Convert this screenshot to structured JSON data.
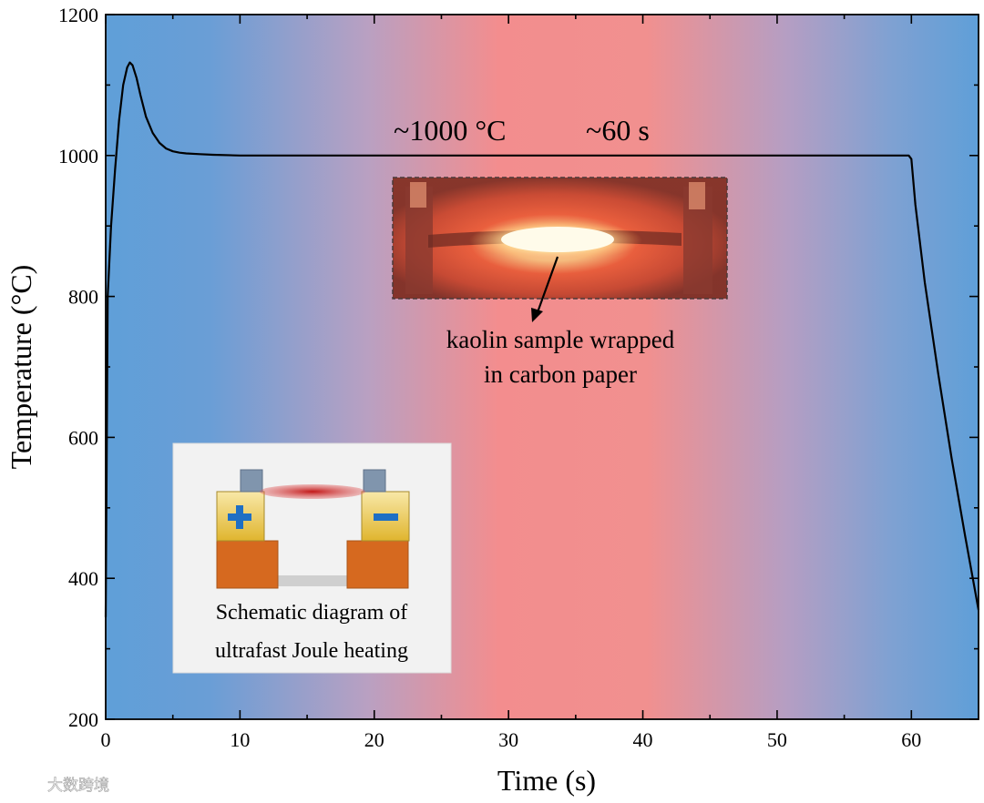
{
  "chart_data": {
    "type": "line",
    "title": "",
    "xlabel": "Time (s)",
    "ylabel": "Temperature (°C)",
    "xlim": [
      0,
      65
    ],
    "ylim": [
      200,
      1200
    ],
    "xticks": [
      0,
      10,
      20,
      30,
      40,
      50,
      60
    ],
    "yticks": [
      200,
      400,
      600,
      800,
      1000,
      1200
    ],
    "grid": false,
    "background": "vertical gradient: blue at edges, red/pink centered near x=30",
    "series": [
      {
        "color": "#000000",
        "x": [
          0,
          0.15,
          0.4,
          0.7,
          1.0,
          1.3,
          1.6,
          1.8,
          2.0,
          2.3,
          2.6,
          3.0,
          3.5,
          4.0,
          4.5,
          5.0,
          5.5,
          6.0,
          7,
          8,
          10,
          20,
          30,
          40,
          50,
          59.8,
          60.0,
          60.3,
          61,
          62,
          63,
          64,
          65
        ],
        "y": [
          345,
          800,
          900,
          980,
          1050,
          1100,
          1125,
          1132,
          1128,
          1110,
          1085,
          1055,
          1032,
          1018,
          1010,
          1006,
          1004,
          1003,
          1002,
          1001,
          1000,
          1000,
          1000,
          1000,
          1000,
          1000,
          995,
          930,
          820,
          690,
          570,
          460,
          355
        ]
      }
    ],
    "annotations": {
      "plateau_label": "~1000 °C",
      "duration_label": "~60 s",
      "photo_caption_line1": "kaolin sample wrapped",
      "photo_caption_line2": "in carbon paper"
    },
    "inset": {
      "caption_line1": "Schematic diagram of",
      "caption_line2": "ultrafast Joule heating"
    }
  },
  "colors": {
    "edge_blue": "#5f9fd8",
    "center_red": "#f58f8d",
    "line": "#000000"
  },
  "watermark": {
    "text": "大数跨境",
    "logo_icon": "weibo-logo-icon"
  }
}
